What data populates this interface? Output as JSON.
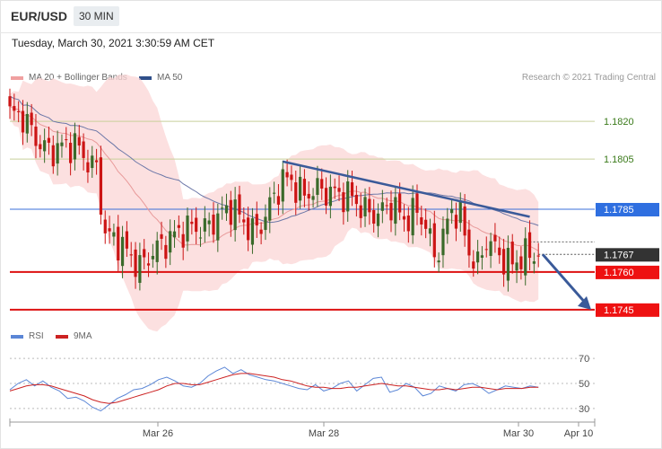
{
  "header": {
    "symbol": "EUR/USD",
    "timeframe": "30 MIN"
  },
  "timestamp": "Tuesday, March 30, 2021 3:30:59 AM CET",
  "legend": {
    "ma20_label": "MA 20 + Bollinger Bands",
    "ma50_label": "MA 50",
    "copyright": "Research © 2021 Trading Central",
    "rsi_label": "RSI",
    "rsi_ma_label": "9MA"
  },
  "colors": {
    "bull": "#3a6a2a",
    "bear": "#cc1414",
    "band": "#fbd6d6",
    "ma20": "#e89a9a",
    "ma50": "#6d78a8",
    "resistance_line": "#3a5a99",
    "support": "#dd1111",
    "pivot_up": "#c8cf9a",
    "pivot_line_blue": "#3a6fd8",
    "rsi": "#5b86d6",
    "rsi_ma": "#cc2222"
  },
  "chart_data": {
    "type": "candlestick",
    "symbol": "EUR/USD",
    "interval": "30 MIN",
    "x_ticks": [
      "Mar 26",
      "Mar 28",
      "Mar 30",
      "Apr 10"
    ],
    "ylim": [
      1.1741,
      1.1834
    ],
    "levels": [
      {
        "value": 1.182,
        "label": "1.1820",
        "style": "olive"
      },
      {
        "value": 1.1805,
        "label": "1.1805",
        "style": "olive"
      },
      {
        "value": 1.1785,
        "label": "1.1785",
        "style": "blue"
      },
      {
        "value": 1.1767,
        "label": "1.1767",
        "style": "current"
      },
      {
        "value": 1.176,
        "label": "1.1760",
        "style": "red"
      },
      {
        "value": 1.1745,
        "label": "1.1745",
        "style": "red"
      }
    ],
    "trendline": {
      "start": [
        63,
        1.1804
      ],
      "end": [
        120,
        1.1782
      ]
    },
    "forecast_arrow": {
      "start": [
        123,
        1.1767
      ],
      "end": [
        135,
        1.1745
      ]
    },
    "price_series": [
      {
        "x": 0,
        "y": 1.1823
      },
      {
        "x": 3,
        "y": 1.1822
      },
      {
        "x": 6,
        "y": 1.1813
      },
      {
        "x": 9,
        "y": 1.1808
      },
      {
        "x": 12,
        "y": 1.181
      },
      {
        "x": 15,
        "y": 1.1811
      },
      {
        "x": 18,
        "y": 1.1804
      },
      {
        "x": 20,
        "y": 1.1801
      },
      {
        "x": 22,
        "y": 1.1775
      },
      {
        "x": 25,
        "y": 1.1772
      },
      {
        "x": 28,
        "y": 1.1766
      },
      {
        "x": 30,
        "y": 1.1762
      },
      {
        "x": 33,
        "y": 1.1768
      },
      {
        "x": 36,
        "y": 1.1772
      },
      {
        "x": 39,
        "y": 1.1776
      },
      {
        "x": 42,
        "y": 1.1778
      },
      {
        "x": 45,
        "y": 1.1777
      },
      {
        "x": 48,
        "y": 1.1782
      },
      {
        "x": 51,
        "y": 1.1786
      },
      {
        "x": 54,
        "y": 1.178
      },
      {
        "x": 56,
        "y": 1.1776
      },
      {
        "x": 58,
        "y": 1.1779
      },
      {
        "x": 61,
        "y": 1.179
      },
      {
        "x": 63,
        "y": 1.1797
      },
      {
        "x": 65,
        "y": 1.1796
      },
      {
        "x": 68,
        "y": 1.179
      },
      {
        "x": 70,
        "y": 1.1793
      },
      {
        "x": 73,
        "y": 1.1792
      },
      {
        "x": 76,
        "y": 1.1791
      },
      {
        "x": 79,
        "y": 1.179
      },
      {
        "x": 82,
        "y": 1.1784
      },
      {
        "x": 85,
        "y": 1.1783
      },
      {
        "x": 88,
        "y": 1.1787
      },
      {
        "x": 91,
        "y": 1.1781
      },
      {
        "x": 94,
        "y": 1.1784
      },
      {
        "x": 96,
        "y": 1.1779
      },
      {
        "x": 98,
        "y": 1.1766
      },
      {
        "x": 100,
        "y": 1.1774
      },
      {
        "x": 102,
        "y": 1.1785
      },
      {
        "x": 104,
        "y": 1.1782
      },
      {
        "x": 106,
        "y": 1.1768
      },
      {
        "x": 108,
        "y": 1.1762
      },
      {
        "x": 110,
        "y": 1.1773
      },
      {
        "x": 112,
        "y": 1.1769
      },
      {
        "x": 114,
        "y": 1.1765
      },
      {
        "x": 116,
        "y": 1.1763
      },
      {
        "x": 118,
        "y": 1.1766
      },
      {
        "x": 120,
        "y": 1.1767
      },
      {
        "x": 122,
        "y": 1.1767
      }
    ],
    "rsi_panel": {
      "ylim": [
        22,
        78
      ],
      "ticks": [
        70,
        50,
        30
      ],
      "rsi": [
        45,
        50,
        53,
        48,
        52,
        47,
        44,
        38,
        39,
        36,
        31,
        28,
        33,
        38,
        41,
        45,
        46,
        49,
        53,
        55,
        52,
        48,
        47,
        50,
        56,
        60,
        63,
        58,
        61,
        57,
        55,
        53,
        52,
        50,
        48,
        46,
        45,
        49,
        44,
        46,
        50,
        52,
        44,
        49,
        54,
        55,
        43,
        45,
        50,
        47,
        40,
        42,
        48,
        46,
        44,
        49,
        50,
        47,
        42,
        45,
        48,
        47,
        46,
        48,
        47
      ],
      "rsi_ma": [
        44,
        46,
        48,
        49,
        49,
        48,
        46,
        44,
        42,
        40,
        37,
        35,
        34,
        35,
        37,
        39,
        41,
        43,
        45,
        48,
        50,
        50,
        49,
        49,
        51,
        53,
        55,
        57,
        58,
        58,
        57,
        56,
        55,
        53,
        52,
        50,
        48,
        47,
        47,
        46,
        46,
        47,
        47,
        48,
        49,
        50,
        49,
        48,
        48,
        47,
        46,
        45,
        45,
        46,
        45,
        46,
        47,
        47,
        46,
        45,
        46,
        46,
        46,
        47,
        47
      ]
    }
  }
}
